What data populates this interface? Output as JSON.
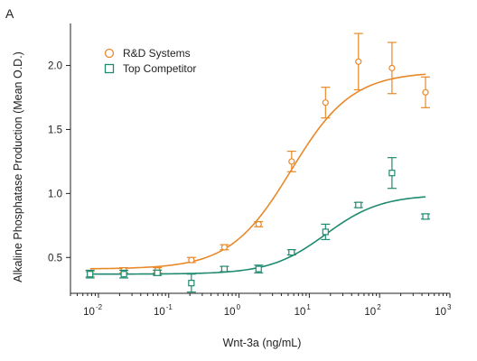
{
  "panel_label": "A",
  "chart_data": {
    "type": "scatter",
    "xlabel": "Wnt-3a (ng/mL)",
    "ylabel": "Alkaline Phosphatase Production (Mean O.D.)",
    "xscale": "log",
    "xlim": [
      0.004,
      1000
    ],
    "ylim": [
      0.22,
      2.3
    ],
    "x_ticks": [
      {
        "base": "10",
        "exp": "-2",
        "value": 0.01
      },
      {
        "base": "10",
        "exp": "-1",
        "value": 0.1
      },
      {
        "base": "10",
        "exp": "0",
        "value": 1
      },
      {
        "base": "10",
        "exp": "1",
        "value": 10
      },
      {
        "base": "10",
        "exp": "2",
        "value": 100
      },
      {
        "base": "10",
        "exp": "3",
        "value": 1000
      }
    ],
    "y_ticks": [
      "0.5",
      "1.0",
      "1.5",
      "2.0"
    ],
    "grid": false,
    "legend_position": "top-left",
    "series": [
      {
        "name": "R&D Systems",
        "color": "#e8892a",
        "marker": "circle",
        "x": [
          0.0076,
          0.023,
          0.069,
          0.21,
          0.62,
          1.9,
          5.6,
          17,
          50,
          150,
          450
        ],
        "y": [
          0.37,
          0.4,
          0.4,
          0.48,
          0.58,
          0.76,
          1.25,
          1.71,
          2.03,
          1.98,
          1.79
        ],
        "err": [
          0.02,
          0.02,
          0.02,
          0.02,
          0.02,
          0.02,
          0.08,
          0.12,
          0.22,
          0.2,
          0.12
        ],
        "fit": {
          "bottom": 0.41,
          "top": 1.95,
          "ec50": 5.5,
          "hill": 1.0
        }
      },
      {
        "name": "Top Competitor",
        "color": "#1f8a70",
        "marker": "square",
        "x": [
          0.0076,
          0.023,
          0.069,
          0.21,
          0.62,
          1.9,
          5.6,
          17,
          50,
          150,
          450
        ],
        "y": [
          0.37,
          0.37,
          0.38,
          0.3,
          0.41,
          0.41,
          0.54,
          0.7,
          0.91,
          1.16,
          0.82
        ],
        "err": [
          0.03,
          0.03,
          0.02,
          0.07,
          0.02,
          0.03,
          0.02,
          0.06,
          0.02,
          0.12,
          0.02
        ],
        "fit": {
          "bottom": 0.37,
          "top": 0.99,
          "ec50": 17,
          "hill": 1.1
        }
      }
    ]
  }
}
